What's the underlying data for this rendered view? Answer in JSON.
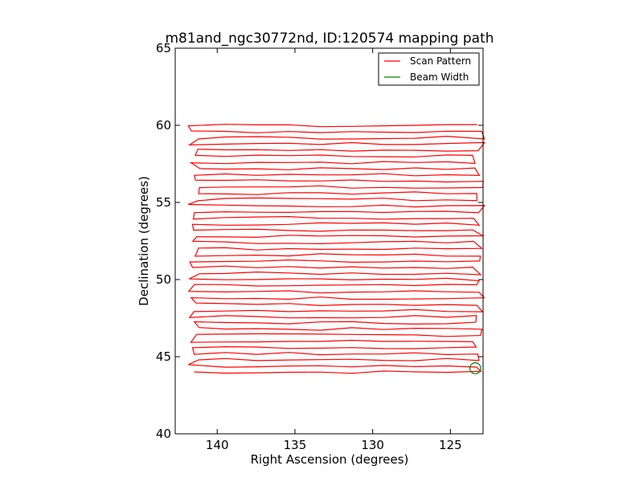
{
  "chart_data": {
    "type": "line",
    "title": "m81and_ngc30772nd, ID:120574 mapping path",
    "xlabel": "Right Ascension (degrees)",
    "ylabel": "Declination (degrees)",
    "xlim": [
      142.7,
      122.9
    ],
    "ylim": [
      40,
      65
    ],
    "x_ticks": [
      140,
      135,
      130,
      125
    ],
    "x_tick_labels": [
      "140",
      "135",
      "130",
      "125"
    ],
    "y_ticks": [
      40,
      45,
      50,
      55,
      60,
      65
    ],
    "y_tick_labels": [
      "40",
      "45",
      "50",
      "55",
      "60",
      "65"
    ],
    "grid": false,
    "legend_position": "top-right",
    "series": [
      {
        "name": "Scan Pattern",
        "color": "#ff0000",
        "style": "boustrophedon raster scan",
        "ra_range": [
          141.5,
          123.2
        ],
        "dec_range": [
          44.0,
          60.0
        ],
        "scan_rows": 41
      },
      {
        "name": "Beam Width",
        "color": "#008000",
        "shape": "circle",
        "center": [
          123.4,
          44.25
        ],
        "radius_deg": 0.35
      }
    ]
  }
}
